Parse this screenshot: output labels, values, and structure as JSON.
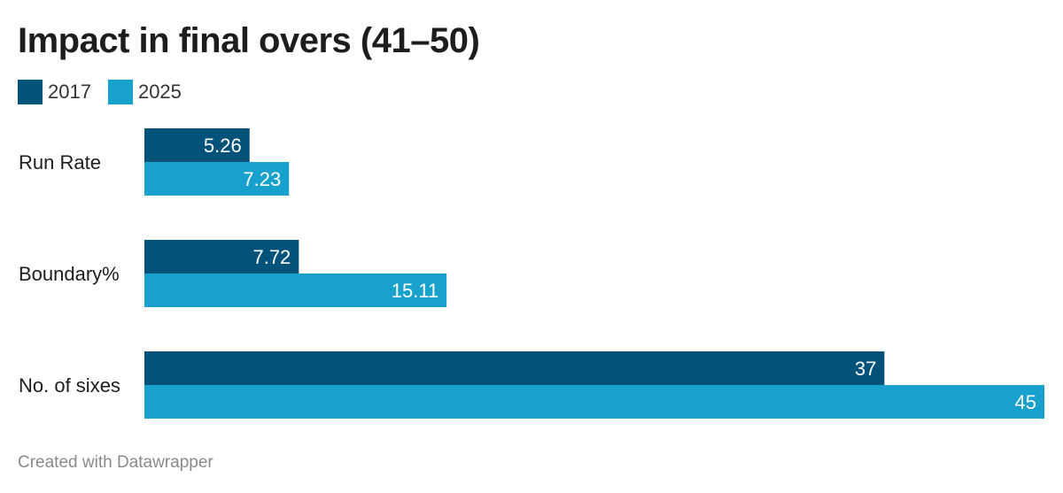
{
  "chart_data": {
    "type": "bar",
    "orientation": "horizontal",
    "title": "Impact in final overs (41–50)",
    "categories": [
      "Run Rate",
      "Boundary%",
      "No. of sixes"
    ],
    "series": [
      {
        "name": "2017",
        "color": "#03527a",
        "values": [
          5.26,
          7.72,
          37
        ]
      },
      {
        "name": "2025",
        "color": "#18a1cd",
        "values": [
          7.23,
          15.11,
          45
        ]
      }
    ],
    "value_labels": [
      [
        "5.26",
        "7.72",
        "37"
      ],
      [
        "7.23",
        "15.11",
        "45"
      ]
    ],
    "xlim": [
      0,
      45
    ],
    "grid": false,
    "legend_position": "top-left"
  },
  "footer": {
    "credit": "Created with Datawrapper"
  },
  "colors": {
    "series_2017": "#03527a",
    "series_2025": "#18a1cd",
    "bar_label_text": "#ffffff",
    "footer_text": "#8a8a8a"
  }
}
